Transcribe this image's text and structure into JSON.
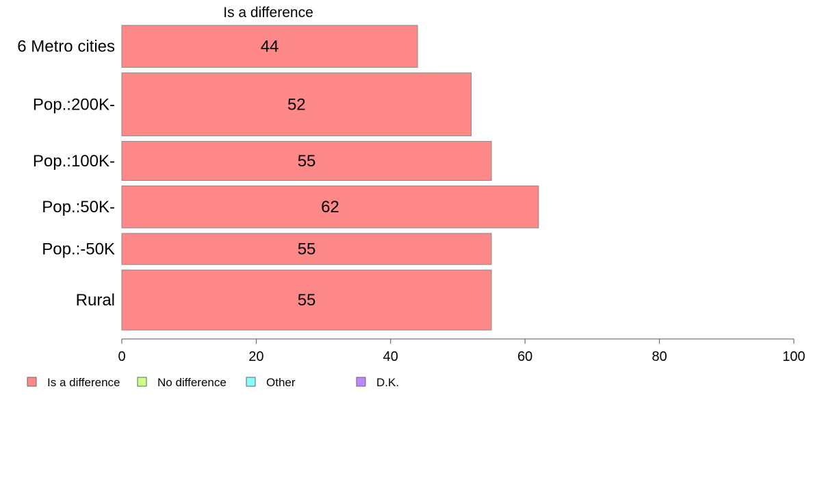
{
  "chart_data": {
    "type": "bar",
    "orientation": "horizontal",
    "series_header": "Is a difference",
    "categories": [
      "6 Metro cities",
      "Pop.:200K-",
      "Pop.:100K-",
      "Pop.:50K-",
      "Pop.:-50K",
      "Rural"
    ],
    "bar_thickness_relative": [
      1.0,
      1.5,
      0.93,
      1.0,
      0.74,
      1.43
    ],
    "series": [
      {
        "name": "Is a difference",
        "color": "#ff8888",
        "values": [
          44,
          52,
          55,
          62,
          55,
          55
        ]
      }
    ],
    "value_labels": [
      "44",
      "52",
      "55",
      "62",
      "55",
      "55"
    ],
    "xlim": [
      0,
      100
    ],
    "xticks": [
      0,
      20,
      40,
      60,
      80,
      100
    ],
    "xtick_labels": [
      "0",
      "20",
      "40",
      "60",
      "80",
      "100"
    ],
    "grid": false,
    "legend_position": "bottom-left",
    "legend": [
      {
        "label": "Is a difference",
        "color": "#ff8888"
      },
      {
        "label": "No difference",
        "color": "#ccff88"
      },
      {
        "label": "Other",
        "color": "#88ffff"
      },
      {
        "label": "D.K.",
        "color": "#bb88ff"
      }
    ]
  }
}
